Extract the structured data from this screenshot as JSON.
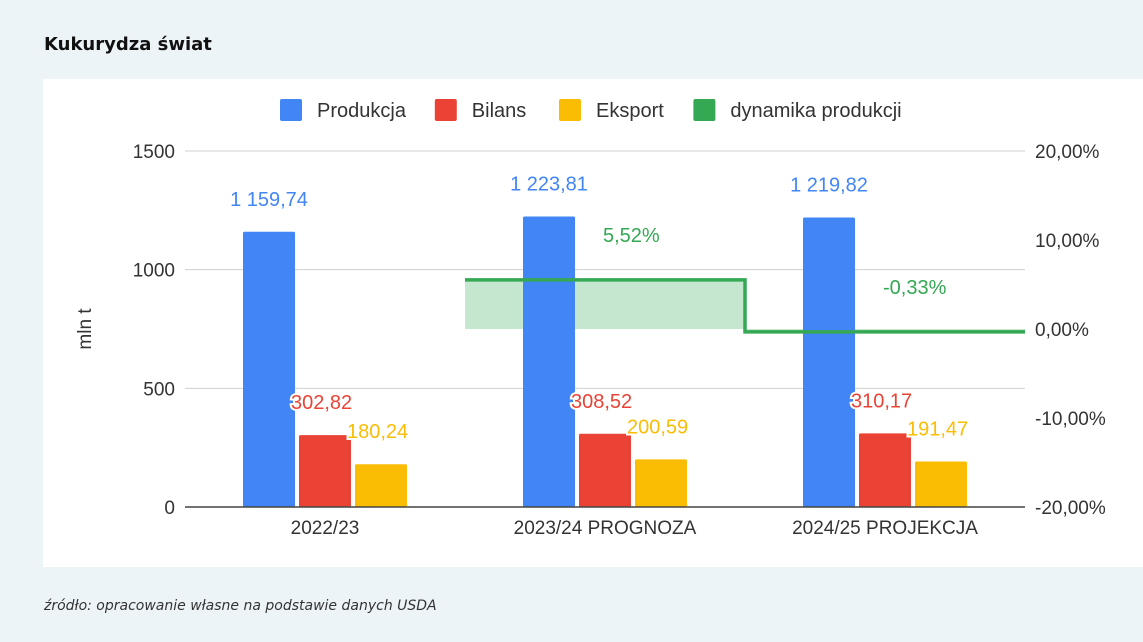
{
  "page": {
    "title": "Kukurydza świat",
    "source": "źródło: opracowanie własne na podstawie danych USDA"
  },
  "chart_data": {
    "type": "bar",
    "title": "",
    "categories": [
      "2022/23",
      "2023/24 PROGNOZA",
      "2024/25 PROJEKCJA"
    ],
    "ylabel": "mln t",
    "ylim": [
      0,
      1500
    ],
    "yticks": [
      0,
      500,
      1000,
      1500
    ],
    "y2lim": [
      -20,
      20
    ],
    "y2ticks": [
      "20,00%",
      "10,00%",
      "0,00%",
      "-10,00%",
      "-20,00%"
    ],
    "legend_position": "top",
    "grid": true,
    "series": [
      {
        "name": "Produkcja",
        "color": "#4285f4",
        "values": [
          1159.74,
          1223.81,
          1219.82
        ],
        "labels": [
          "1 159,74",
          "1 223,81",
          "1 219,82"
        ]
      },
      {
        "name": "Bilans",
        "color": "#ea4335",
        "values": [
          302.82,
          308.52,
          310.17
        ],
        "labels": [
          "302,82",
          "308,52",
          "310,17"
        ]
      },
      {
        "name": "Eksport",
        "color": "#fbbc04",
        "values": [
          180.24,
          200.59,
          191.47
        ],
        "labels": [
          "180,24",
          "200,59",
          "191,47"
        ]
      }
    ],
    "line_series": {
      "name": "dynamika produkcji",
      "color": "#34a853",
      "axis": "secondary",
      "values": [
        null,
        5.52,
        -0.33
      ],
      "labels": [
        "",
        "5,52%",
        "-0,33%"
      ]
    }
  }
}
